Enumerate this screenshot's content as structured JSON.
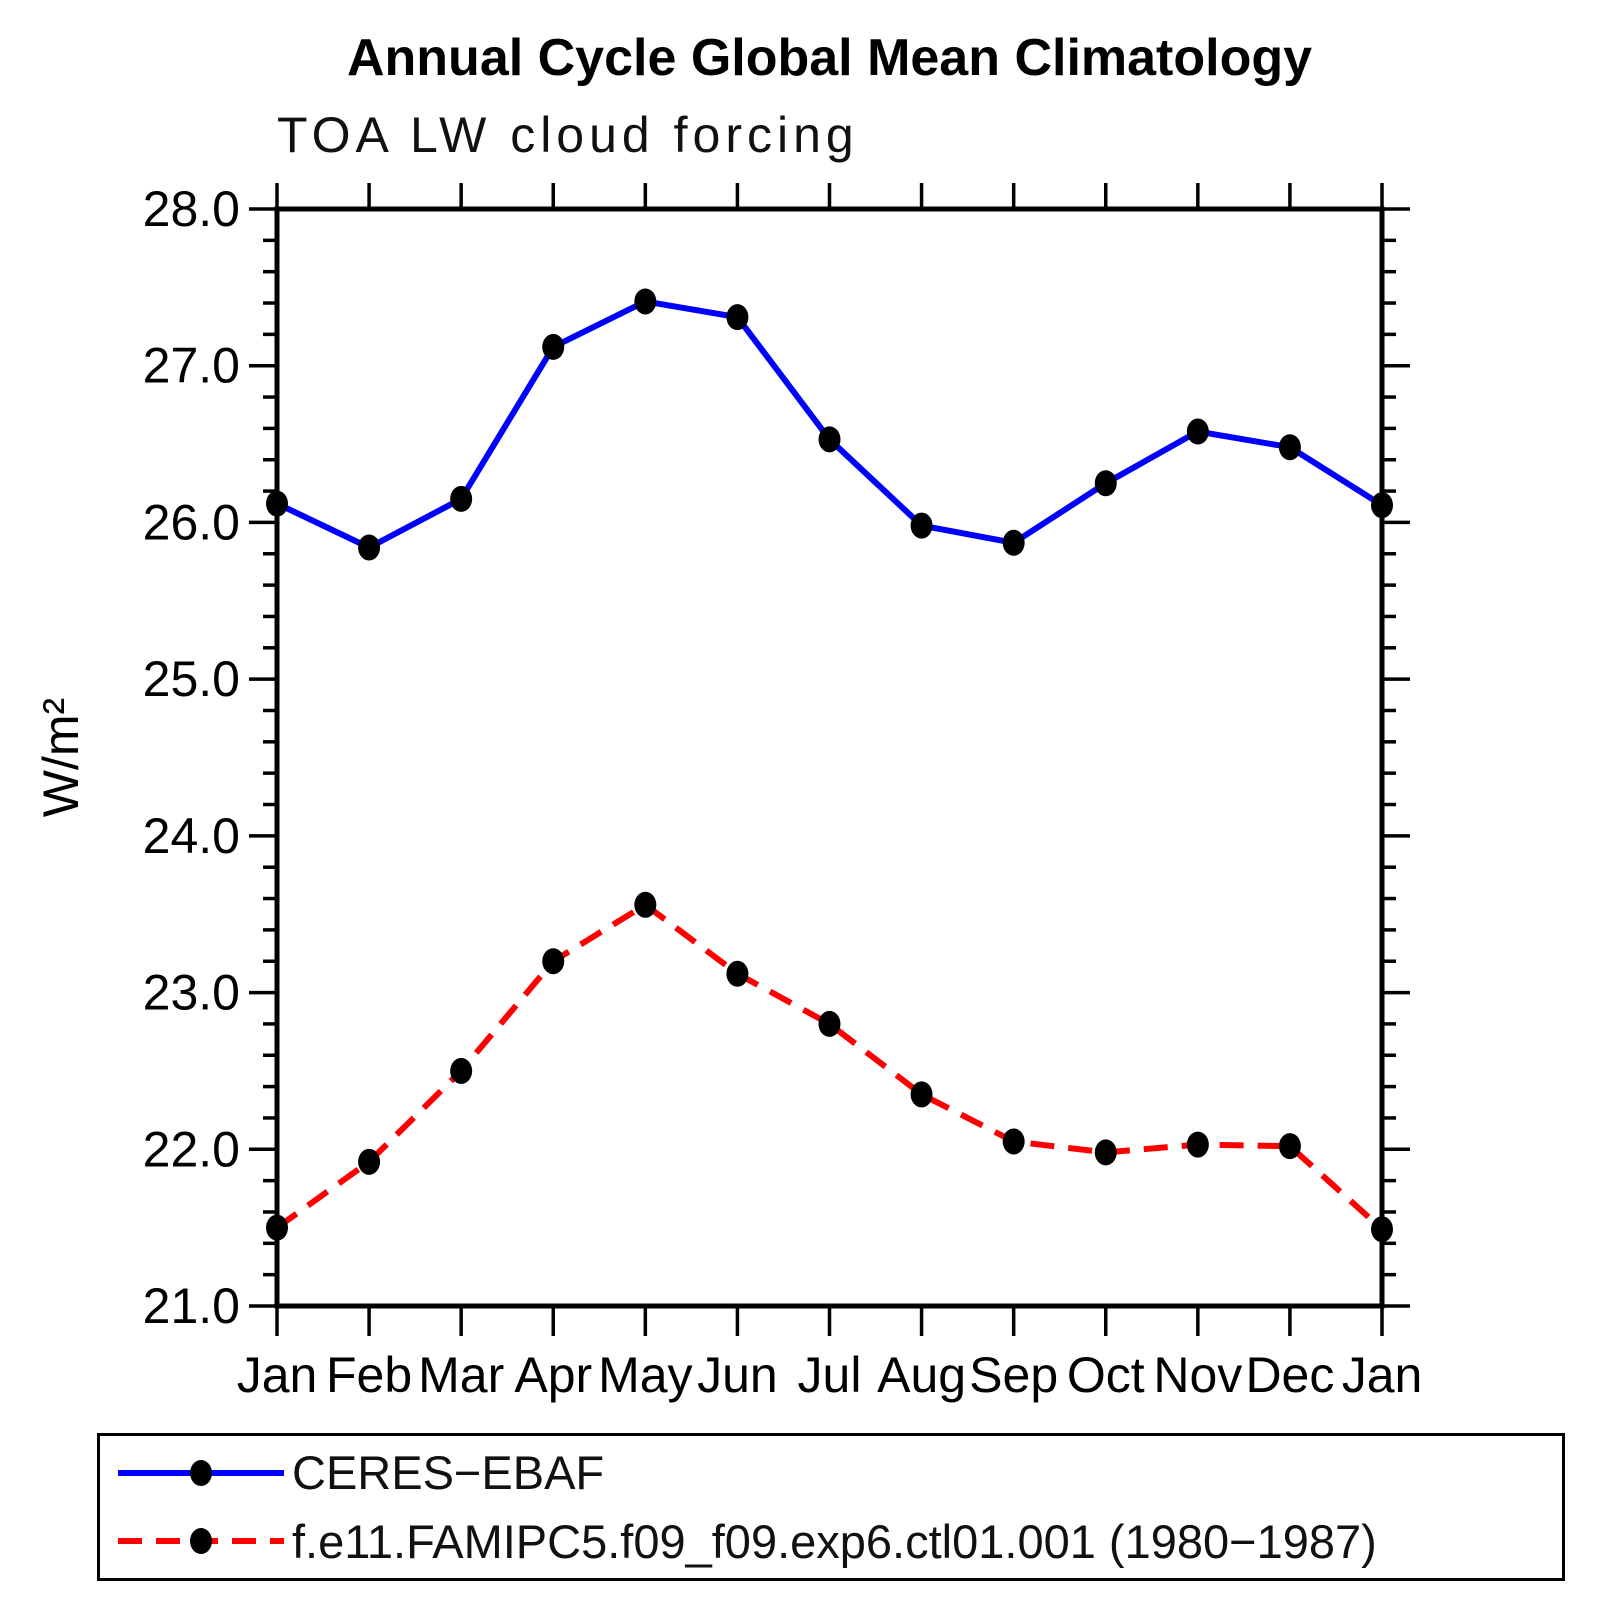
{
  "title": "Annual Cycle Global Mean Climatology",
  "subtitle": "TOA LW cloud forcing",
  "chart_data": {
    "type": "line",
    "title": "Annual Cycle Global Mean Climatology",
    "subtitle": "TOA LW cloud forcing",
    "xlabel": "",
    "ylabel": "W/m²",
    "x_categories": [
      "Jan",
      "Feb",
      "Mar",
      "Apr",
      "May",
      "Jun",
      "Jul",
      "Aug",
      "Sep",
      "Oct",
      "Nov",
      "Dec",
      "Jan"
    ],
    "ylim": [
      21.0,
      28.0
    ],
    "y_major_step": 1.0,
    "y_minor_step": 0.2,
    "y_tick_labels": [
      "21.0",
      "22.0",
      "23.0",
      "24.0",
      "25.0",
      "26.0",
      "27.0",
      "28.0"
    ],
    "grid": false,
    "legend_position": "bottom",
    "axis_color": "#000000",
    "marker_color": "#000000",
    "series": [
      {
        "name": "CERES−EBAF",
        "color": "#0000ff",
        "style": "solid",
        "marker": "circle",
        "values": [
          26.12,
          25.84,
          26.15,
          27.12,
          27.41,
          27.31,
          26.53,
          25.98,
          25.87,
          26.25,
          26.58,
          26.48,
          26.11
        ]
      },
      {
        "name": "f.e11.FAMIPC5.f09_f09.exp6.ctl01.001 (1980−1987)",
        "color": "#ff0000",
        "style": "dashed",
        "marker": "circle",
        "values": [
          21.5,
          21.92,
          22.5,
          23.2,
          23.56,
          23.12,
          22.8,
          22.35,
          22.05,
          21.98,
          22.03,
          22.02,
          21.49
        ]
      }
    ]
  }
}
